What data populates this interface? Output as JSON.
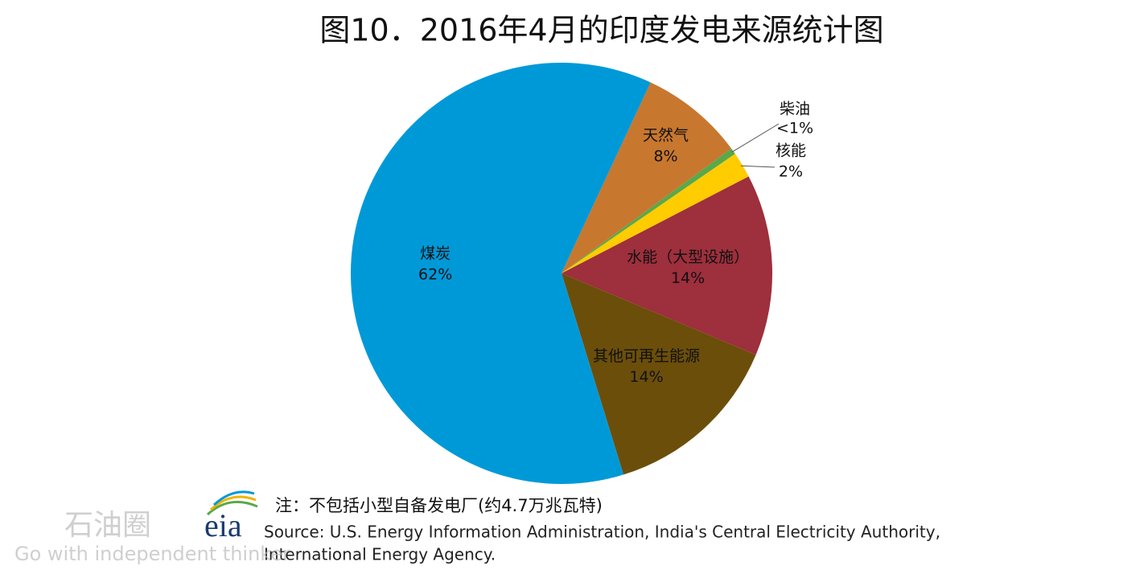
{
  "chart_data": {
    "type": "pie",
    "title": "图10．2016年4月的印度发电来源统计图",
    "categories": [
      "天然气",
      "柴油",
      "核能",
      "水能（大型设施）",
      "其他可再生能源",
      "煤炭"
    ],
    "values": [
      8,
      0.5,
      2,
      14,
      14,
      62
    ],
    "value_labels": [
      "8%",
      "<1%",
      "2%",
      "14%",
      "14%",
      "62%"
    ],
    "colors": [
      "#c8772f",
      "#5aa84a",
      "#ffcc00",
      "#9e2f3c",
      "#6b4e0a",
      "#0099d8"
    ],
    "note": "注：不包括小型自备发电厂(约4.7万兆瓦特)",
    "source": [
      "Source: U.S. Energy Information  Administration, India's Central Electricity Authority,",
      "International  Energy Agency."
    ],
    "logo": "eia",
    "watermark": [
      "石油圈",
      "Go with independent thinker"
    ]
  }
}
